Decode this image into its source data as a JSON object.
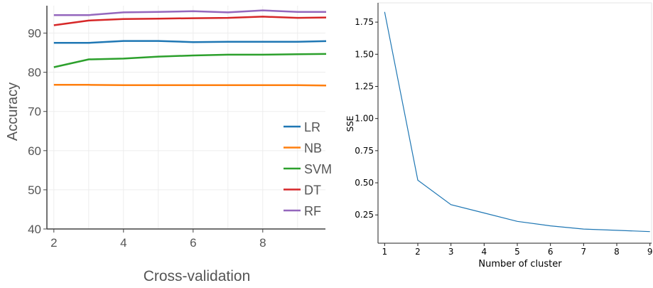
{
  "chart_data": [
    {
      "type": "line",
      "title": "",
      "xlabel": "Cross-validation",
      "ylabel": "Accuracy",
      "x": [
        2,
        3,
        4,
        5,
        6,
        7,
        8,
        9,
        10
      ],
      "xlim": [
        1.8,
        9.8
      ],
      "ylim": [
        40,
        97
      ],
      "xticks": [
        2,
        4,
        6,
        8
      ],
      "yticks": [
        40,
        50,
        60,
        70,
        80,
        90
      ],
      "grid": true,
      "legend_position": "right",
      "series": [
        {
          "name": "LR",
          "color": "#1f77b4",
          "values": [
            87.5,
            87.5,
            88.0,
            88.0,
            87.7,
            87.8,
            87.8,
            87.8,
            88.0
          ]
        },
        {
          "name": "NB",
          "color": "#ff7f0e",
          "values": [
            76.8,
            76.8,
            76.7,
            76.7,
            76.7,
            76.7,
            76.7,
            76.7,
            76.6
          ]
        },
        {
          "name": "SVM",
          "color": "#2ca02c",
          "values": [
            81.3,
            83.3,
            83.5,
            84.0,
            84.3,
            84.5,
            84.5,
            84.6,
            84.7
          ]
        },
        {
          "name": "DT",
          "color": "#d62728",
          "values": [
            92.0,
            93.2,
            93.6,
            93.7,
            93.8,
            93.9,
            94.2,
            93.9,
            94.0
          ]
        },
        {
          "name": "RF",
          "color": "#9467bd",
          "values": [
            94.6,
            94.6,
            95.3,
            95.4,
            95.6,
            95.3,
            95.8,
            95.4,
            95.4
          ]
        }
      ]
    },
    {
      "type": "line",
      "title": "",
      "xlabel": "Number of cluster",
      "ylabel": "SSE",
      "x": [
        1,
        2,
        3,
        4,
        5,
        6,
        7,
        8,
        9
      ],
      "xlim": [
        0.8,
        9.05
      ],
      "ylim": [
        0.03,
        1.9
      ],
      "xticks": [
        1,
        2,
        3,
        4,
        5,
        6,
        7,
        8,
        9
      ],
      "yticks": [
        "0.25",
        "0.50",
        "0.75",
        "1.00",
        "1.25",
        "1.50",
        "1.75"
      ],
      "grid": false,
      "series": [
        {
          "name": "",
          "color": "#1f77b4",
          "values": [
            1.83,
            0.52,
            0.33,
            0.265,
            0.2,
            0.165,
            0.14,
            0.13,
            0.12
          ]
        }
      ]
    }
  ]
}
